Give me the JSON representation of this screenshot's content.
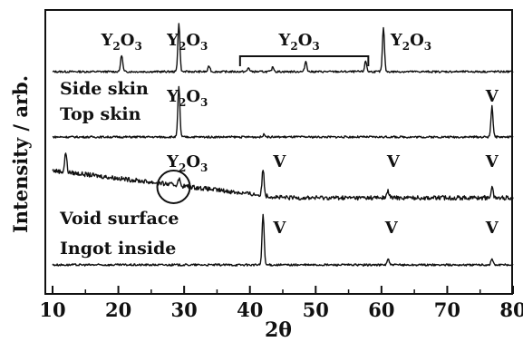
{
  "chart_data": {
    "type": "line",
    "title": "",
    "xlabel": "2θ",
    "ylabel": "Intensity / arb.",
    "xlim": [
      10,
      80
    ],
    "x_ticks": [
      "10",
      "20",
      "30",
      "40",
      "50",
      "60",
      "70",
      "80"
    ],
    "grid": false,
    "series": [
      {
        "name": "Side skin",
        "peaks": [
          {
            "x": 20.5,
            "height": 0.35
          },
          {
            "x": 29.2,
            "height": 1.0
          },
          {
            "x": 33.8,
            "height": 0.12
          },
          {
            "x": 39.8,
            "height": 0.08
          },
          {
            "x": 43.5,
            "height": 0.1
          },
          {
            "x": 48.5,
            "height": 0.22
          },
          {
            "x": 57.6,
            "height": 0.22
          },
          {
            "x": 60.3,
            "height": 0.9
          }
        ],
        "background": {
          "start": 0.0,
          "end": 0.0
        }
      },
      {
        "name": "Top skin",
        "peaks": [
          {
            "x": 29.2,
            "height": 1.0
          },
          {
            "x": 42.2,
            "height": 0.06
          },
          {
            "x": 76.8,
            "height": 0.62
          }
        ],
        "background": {
          "start": 0.0,
          "end": 0.0
        }
      },
      {
        "name": "Void surface",
        "peaks": [
          {
            "x": 12.0,
            "height": 0.55
          },
          {
            "x": 29.2,
            "height": 0.2
          },
          {
            "x": 42.0,
            "height": 0.72
          },
          {
            "x": 61.0,
            "height": 0.2
          },
          {
            "x": 76.8,
            "height": 0.3
          }
        ],
        "background": {
          "start": 0.75,
          "end": 0.0
        }
      },
      {
        "name": "Ingot inside",
        "peaks": [
          {
            "x": 42.0,
            "height": 1.0
          },
          {
            "x": 61.0,
            "height": 0.12
          },
          {
            "x": 76.8,
            "height": 0.12
          }
        ],
        "background": {
          "start": 0.0,
          "end": 0.0
        }
      }
    ],
    "annotations": [
      {
        "text": "Y",
        "sub": "2",
        "text2": "O",
        "sub2": "3",
        "x": 20.5,
        "series": "Side skin"
      },
      {
        "text": "Y",
        "sub": "2",
        "text2": "O",
        "sub2": "3",
        "x": 30.5,
        "series": "Side skin"
      },
      {
        "text": "Y",
        "sub": "2",
        "text2": "O",
        "sub2": "3",
        "x": 47.5,
        "series": "Side skin"
      },
      {
        "text": "Y",
        "sub": "2",
        "text2": "O",
        "sub2": "3",
        "x": 64.5,
        "series": "Side skin"
      },
      {
        "text": "Y",
        "sub": "2",
        "text2": "O",
        "sub2": "3",
        "x": 30.5,
        "series": "Top skin"
      },
      {
        "text": "V",
        "x": 76.8,
        "series": "Top skin"
      },
      {
        "text": "Y",
        "sub": "2",
        "text2": "O",
        "sub2": "3",
        "x": 30.5,
        "series": "Void surface"
      },
      {
        "text": "V",
        "x": 44.5,
        "series": "Void surface"
      },
      {
        "text": "V",
        "x": 61.8,
        "series": "Void surface"
      },
      {
        "text": "V",
        "x": 76.8,
        "series": "Void surface"
      },
      {
        "text": "V",
        "x": 44.5,
        "series": "Ingot inside"
      },
      {
        "text": "V",
        "x": 61.5,
        "series": "Ingot inside"
      },
      {
        "text": "V",
        "x": 76.8,
        "series": "Ingot inside"
      }
    ],
    "bracket": {
      "x_start": 38.5,
      "x_end": 58.0,
      "series": "Side skin"
    },
    "circle": {
      "x": 29.5,
      "series": "Void surface"
    }
  }
}
